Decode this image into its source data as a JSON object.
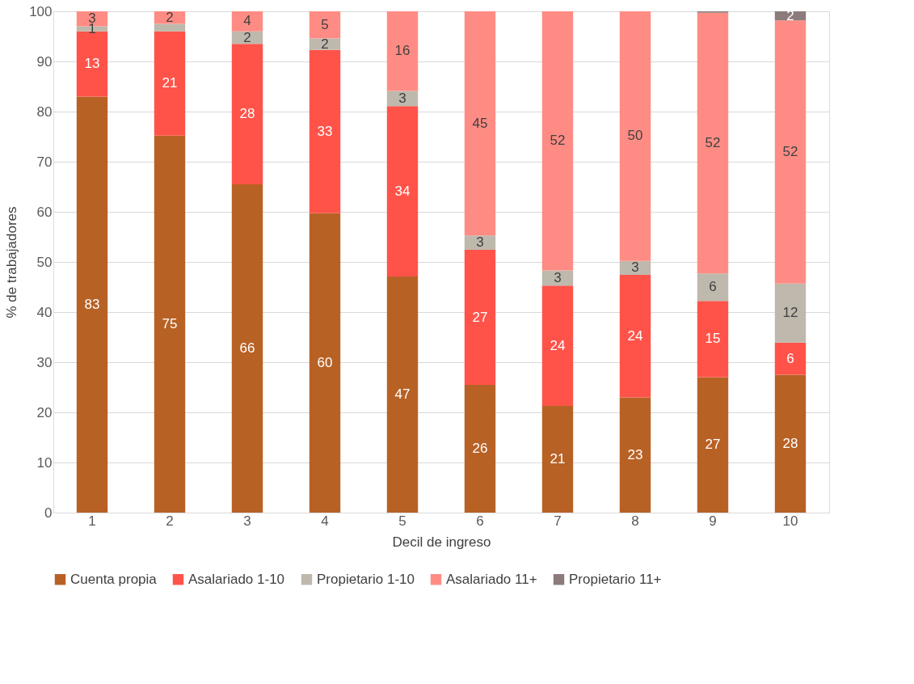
{
  "chart_data": {
    "type": "bar",
    "stacked": true,
    "xlabel": "Decil de ingreso",
    "ylabel": "% de trabajadores",
    "categories": [
      "1",
      "2",
      "3",
      "4",
      "5",
      "6",
      "7",
      "8",
      "9",
      "10"
    ],
    "ylim": [
      0,
      100
    ],
    "yticks": [
      0,
      10,
      20,
      30,
      40,
      50,
      60,
      70,
      80,
      90,
      100
    ],
    "grid": "y",
    "legend": "bottom",
    "series": [
      {
        "name": "Cuenta propia",
        "color": "#b86125",
        "values": [
          83,
          75.2,
          65.5,
          59.7,
          47.1,
          25.5,
          21.3,
          23,
          27,
          27.5
        ],
        "value_labels": [
          "83",
          "75",
          "66",
          "60",
          "47",
          "26",
          "21",
          "23",
          "27",
          "28"
        ]
      },
      {
        "name": "Asalariado 1-10",
        "color": "#ff5349",
        "values": [
          13,
          20.8,
          28,
          32.6,
          34,
          26.9,
          24,
          24.4,
          15.2,
          6.4
        ],
        "value_labels": [
          "13",
          "21",
          "28",
          "33",
          "34",
          "27",
          "24",
          "24",
          "15",
          "6"
        ]
      },
      {
        "name": "Propietario 1-10",
        "color": "#bfb8ad",
        "values": [
          1,
          1.5,
          2.5,
          2.3,
          3,
          2.9,
          3,
          2.8,
          5.5,
          11.8
        ],
        "value_labels": [
          "1",
          null,
          "2",
          "2",
          "3",
          "3",
          "3",
          "3",
          "6",
          "12"
        ]
      },
      {
        "name": "Asalariado 11+",
        "color": "#ff8c84",
        "values": [
          3,
          2.5,
          4,
          5.4,
          15.9,
          44.7,
          51.7,
          49.8,
          52,
          52.5
        ],
        "value_labels": [
          "3",
          "2",
          "4",
          "5",
          "16",
          "45",
          "52",
          "50",
          "52",
          "52"
        ]
      },
      {
        "name": "Propietario 11+",
        "color": "#8c7b7a",
        "values": [
          0,
          0,
          0,
          0,
          0,
          0,
          0,
          0,
          0.3,
          1.8
        ],
        "value_labels": [
          null,
          null,
          null,
          null,
          null,
          null,
          null,
          null,
          null,
          "2"
        ]
      }
    ]
  }
}
